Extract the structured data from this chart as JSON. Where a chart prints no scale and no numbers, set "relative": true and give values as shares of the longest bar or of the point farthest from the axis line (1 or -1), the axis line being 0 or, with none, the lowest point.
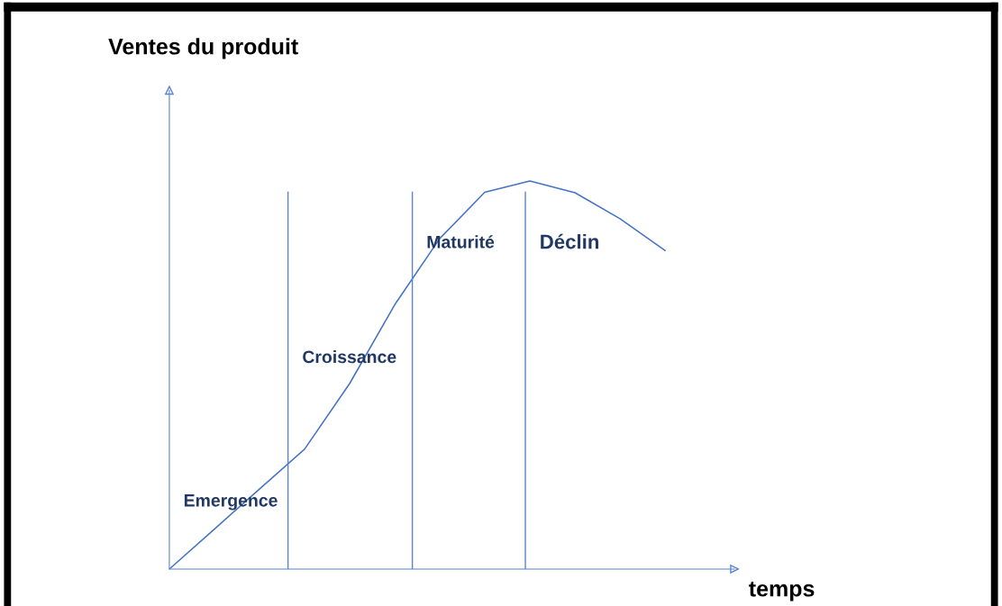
{
  "chart_data": {
    "type": "line",
    "relative": true,
    "xlabel": "temps",
    "categories": [
      null,
      null,
      null,
      null,
      null,
      null,
      null,
      null,
      null,
      null,
      null,
      null
    ],
    "series": [
      {
        "color": "#4472c4",
        "values": [
          0,
          0.103,
          0.206,
          0.309,
          0.478,
          0.681,
          0.852,
          0.971,
          1.0,
          0.97,
          0.903,
          0.821
        ]
      }
    ],
    "annotations": [
      "Ventes du produit",
      "Emergence",
      "Croissance",
      "Maturité",
      "Déclin"
    ],
    "legend": false,
    "marker": "none",
    "line_style": "solid"
  }
}
